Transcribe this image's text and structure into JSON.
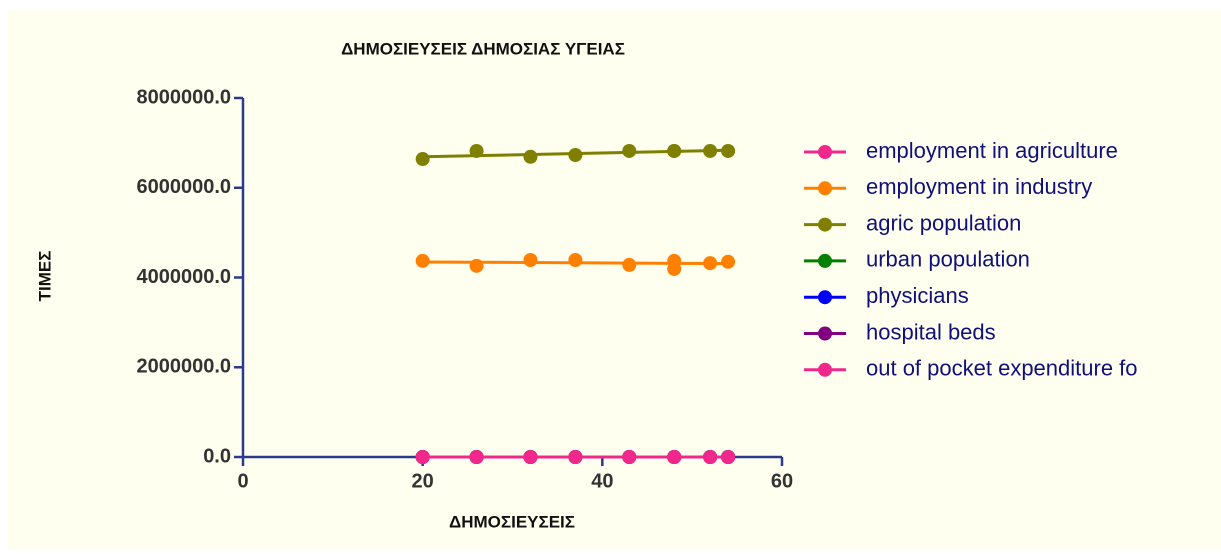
{
  "chart_data": {
    "type": "scatter",
    "title": "ΔΗΜΟΣΙΕΥΣΕΙΣ ΔΗΜΟΣΙΑΣ ΥΓΕΙΑΣ",
    "x_label": "ΔΗΜΟΣΙΕΥΣΕΙΣ",
    "y_label": "ΤΙΜΕΣ",
    "x": [
      20,
      26,
      32,
      37,
      43,
      48,
      48,
      52,
      54
    ],
    "series": [
      {
        "name": "agric population",
        "color": "#808000",
        "values": [
          6640000,
          6820000,
          6690000,
          6730000,
          6820000,
          6820000,
          6820000,
          6820000,
          6820000
        ]
      },
      {
        "name": "employment in industry",
        "color": "#ff8000",
        "values": [
          4370000,
          4260000,
          4390000,
          4390000,
          4280000,
          4370000,
          4190000,
          4320000,
          4350000
        ]
      },
      {
        "name": "urban population",
        "color": "#008000",
        "values": [
          0,
          0,
          0,
          0,
          0,
          0,
          0,
          0,
          0
        ]
      },
      {
        "name": "physicians",
        "color": "#0000ff",
        "values": [
          0,
          0,
          0,
          0,
          0,
          0,
          0,
          0,
          0
        ]
      },
      {
        "name": "hospital beds",
        "color": "#800080",
        "values": [
          0,
          0,
          0,
          0,
          0,
          0,
          0,
          0,
          0
        ]
      },
      {
        "name": "employment in agriculture",
        "color": "#f0288c",
        "values": [
          0,
          0,
          0,
          0,
          0,
          0,
          0,
          0,
          0
        ]
      },
      {
        "name": "out of pocket expenditure fo",
        "color": "#f0288c",
        "values": [
          0,
          0,
          0,
          0,
          0,
          0,
          0,
          0,
          0
        ]
      }
    ],
    "legend_order": [
      5,
      1,
      0,
      2,
      3,
      4,
      6
    ],
    "trendline": true,
    "xlim": [
      0,
      60
    ],
    "xticks": [
      0,
      20,
      40,
      60
    ],
    "ylim": [
      0,
      8000000
    ],
    "yticks": [
      {
        "value": 0,
        "label": "0.0"
      },
      {
        "value": 2000000,
        "label": "2000000.0"
      },
      {
        "value": 4000000,
        "label": "4000000.0"
      },
      {
        "value": 6000000,
        "label": "6000000.0"
      },
      {
        "value": 8000000,
        "label": "8000000.0"
      }
    ],
    "legend": "right"
  }
}
